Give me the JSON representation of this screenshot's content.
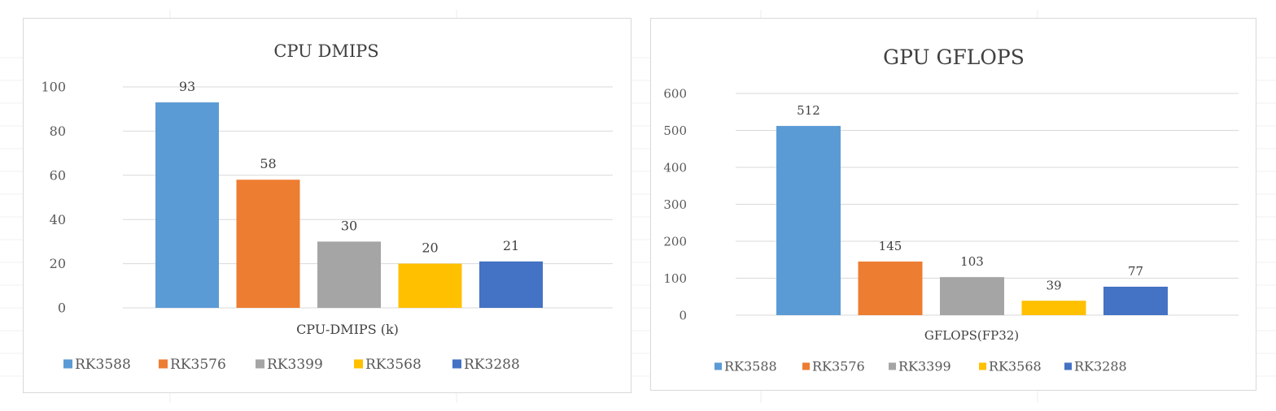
{
  "chart_data": [
    {
      "type": "bar",
      "title": "CPU DMIPS",
      "xlabel": "CPU-DMIPS (k)",
      "ylabel": "",
      "categories": [
        "CPU-DMIPS (k)"
      ],
      "series": [
        {
          "name": "RK3588",
          "values": [
            93
          ],
          "color": "#5B9BD5"
        },
        {
          "name": "RK3576",
          "values": [
            58
          ],
          "color": "#ED7D31"
        },
        {
          "name": "RK3399",
          "values": [
            30
          ],
          "color": "#A5A5A5"
        },
        {
          "name": "RK3568",
          "values": [
            20
          ],
          "color": "#FFC000"
        },
        {
          "name": "RK3288",
          "values": [
            21
          ],
          "color": "#4472C4"
        }
      ],
      "data_labels": [
        "93",
        "58",
        "30",
        "20",
        "21"
      ],
      "ylim": [
        0,
        100
      ],
      "yticks": [
        0,
        20,
        40,
        60,
        80,
        100
      ],
      "ytick_labels": [
        "0",
        "20",
        "40",
        "60",
        "80",
        "100"
      ],
      "grid": true,
      "legend": "bottom"
    },
    {
      "type": "bar",
      "title": "GPU GFLOPS",
      "xlabel": "GFLOPS(FP32)",
      "ylabel": "",
      "categories": [
        "GFLOPS(FP32)"
      ],
      "series": [
        {
          "name": "RK3588",
          "values": [
            512
          ],
          "color": "#5B9BD5"
        },
        {
          "name": "RK3576",
          "values": [
            145
          ],
          "color": "#ED7D31"
        },
        {
          "name": "RK3399",
          "values": [
            103
          ],
          "color": "#A5A5A5"
        },
        {
          "name": "RK3568",
          "values": [
            39
          ],
          "color": "#FFC000"
        },
        {
          "name": "RK3288",
          "values": [
            77
          ],
          "color": "#4472C4"
        }
      ],
      "data_labels": [
        "512",
        "145",
        "103",
        "39",
        "77"
      ],
      "ylim": [
        0,
        600
      ],
      "yticks": [
        0,
        100,
        200,
        300,
        400,
        500,
        600
      ],
      "ytick_labels": [
        "0",
        "100",
        "200",
        "300",
        "400",
        "500",
        "600"
      ],
      "grid": true,
      "legend": "bottom"
    }
  ]
}
